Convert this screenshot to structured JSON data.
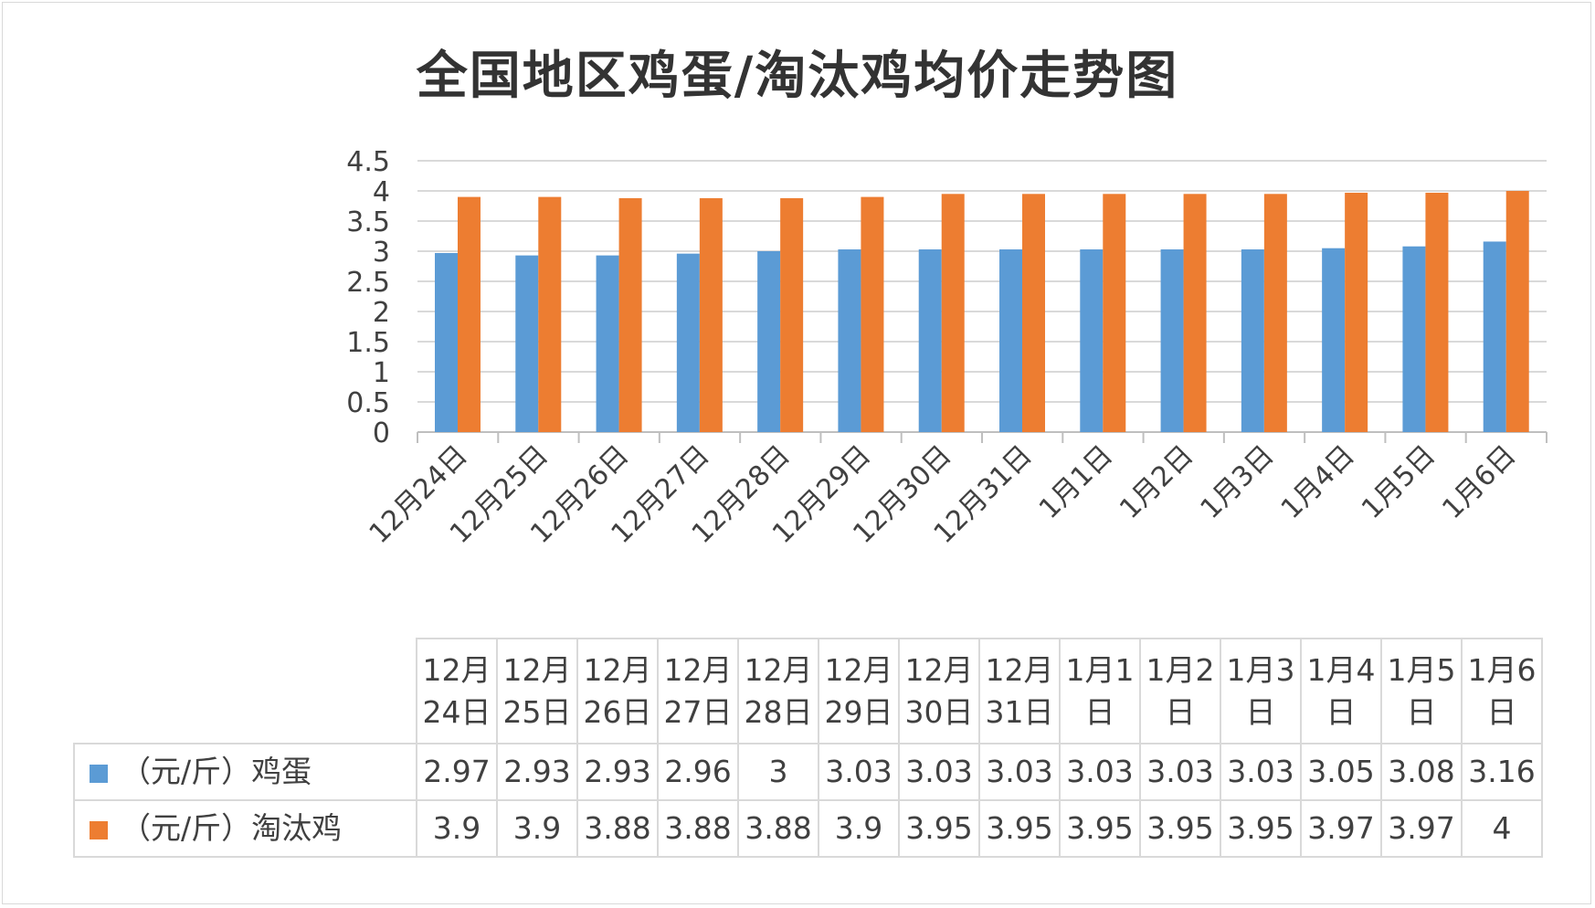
{
  "chart_data": {
    "type": "bar",
    "title": "全国地区鸡蛋/淘汰鸡均价走势图",
    "categories": [
      "12月24日",
      "12月25日",
      "12月26日",
      "12月27日",
      "12月28日",
      "12月29日",
      "12月30日",
      "12月31日",
      "1月1日",
      "1月2日",
      "1月3日",
      "1月4日",
      "1月5日",
      "1月6日"
    ],
    "table_headers": [
      [
        "12月",
        "24日"
      ],
      [
        "12月",
        "25日"
      ],
      [
        "12月",
        "26日"
      ],
      [
        "12月",
        "27日"
      ],
      [
        "12月",
        "28日"
      ],
      [
        "12月",
        "29日"
      ],
      [
        "12月",
        "30日"
      ],
      [
        "12月",
        "31日"
      ],
      [
        "1月1",
        "日"
      ],
      [
        "1月2",
        "日"
      ],
      [
        "1月3",
        "日"
      ],
      [
        "1月4",
        "日"
      ],
      [
        "1月5",
        "日"
      ],
      [
        "1月6",
        "日"
      ]
    ],
    "series": [
      {
        "name": "（元/斤）鸡蛋",
        "color": "#5b9bd5",
        "values": [
          2.97,
          2.93,
          2.93,
          2.96,
          3,
          3.03,
          3.03,
          3.03,
          3.03,
          3.03,
          3.03,
          3.05,
          3.08,
          3.16
        ],
        "labels": [
          "2.97",
          "2.93",
          "2.93",
          "2.96",
          "3",
          "3.03",
          "3.03",
          "3.03",
          "3.03",
          "3.03",
          "3.03",
          "3.05",
          "3.08",
          "3.16"
        ]
      },
      {
        "name": "（元/斤）淘汰鸡",
        "color": "#ed7d31",
        "values": [
          3.9,
          3.9,
          3.88,
          3.88,
          3.88,
          3.9,
          3.95,
          3.95,
          3.95,
          3.95,
          3.95,
          3.97,
          3.97,
          4
        ],
        "labels": [
          "3.9",
          "3.9",
          "3.88",
          "3.88",
          "3.88",
          "3.9",
          "3.95",
          "3.95",
          "3.95",
          "3.95",
          "3.95",
          "3.97",
          "3.97",
          "4"
        ]
      }
    ],
    "ylim": [
      0,
      4.5
    ],
    "yticks": [
      "0",
      "0.5",
      "1",
      "1.5",
      "2",
      "2.5",
      "3",
      "3.5",
      "4",
      "4.5"
    ],
    "grid": true,
    "legend": "data-table-bottom"
  }
}
